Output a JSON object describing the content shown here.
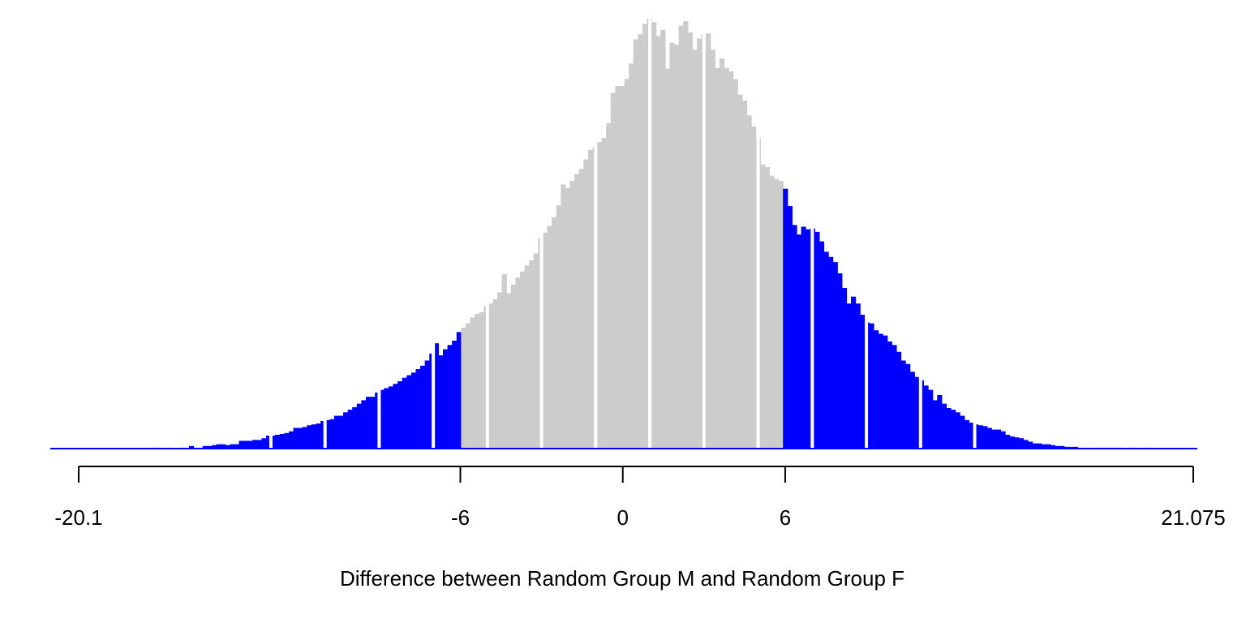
{
  "chart_data": {
    "type": "bar",
    "title": "",
    "xlabel": "Difference between Random Group M and Random Group F",
    "ylabel": "",
    "bin_width": 0.1675,
    "x_start": -21.05,
    "x_axis_range": [
      -20.1,
      21.075
    ],
    "tick_values": [
      -20.1,
      -6,
      0,
      6,
      21.075
    ],
    "tick_labels": [
      "-20.1",
      "-6",
      "0",
      "6",
      "21.075"
    ],
    "threshold_low": -6,
    "threshold_high": 6,
    "y_axis_visible": false,
    "grid": false,
    "legend": "none",
    "colors": {
      "tail": "#0000FF",
      "middle": "#CCCCCC",
      "axis": "#000000",
      "background": "#FFFFFF"
    },
    "counts": [
      0,
      0,
      0,
      0,
      0,
      0,
      0,
      0,
      0,
      0,
      0,
      0,
      0,
      0,
      0,
      0,
      0,
      0,
      0,
      0,
      0,
      0,
      1,
      1,
      0,
      1,
      0,
      0,
      1,
      1,
      3,
      1,
      1,
      3,
      3,
      4,
      5,
      5,
      4,
      5,
      5,
      9,
      9,
      9,
      10,
      10,
      12,
      15,
      15,
      16,
      17,
      18,
      20,
      24,
      24,
      25,
      27,
      28,
      29,
      32,
      33,
      34,
      38,
      38,
      42,
      45,
      48,
      52,
      56,
      60,
      60,
      65,
      68,
      70,
      72,
      75,
      78,
      82,
      85,
      88,
      92,
      96,
      102,
      110,
      122,
      108,
      115,
      120,
      125,
      135,
      140,
      145,
      152,
      156,
      158,
      165,
      168,
      173,
      181,
      202,
      180,
      190,
      198,
      205,
      212,
      218,
      226,
      244,
      250,
      258,
      268,
      282,
      306,
      302,
      310,
      318,
      324,
      335,
      346,
      349,
      355,
      360,
      377,
      412,
      420,
      420,
      428,
      446,
      474,
      480,
      492,
      498,
      494,
      478,
      485,
      440,
      470,
      468,
      490,
      495,
      482,
      462,
      475,
      480,
      481,
      462,
      441,
      452,
      441,
      437,
      428,
      410,
      403,
      386,
      373,
      360,
      329,
      326,
      316,
      312,
      310,
      301,
      281,
      259,
      248,
      257,
      254,
      255,
      251,
      240,
      228,
      222,
      216,
      203,
      186,
      168,
      176,
      168,
      155,
      146,
      145,
      137,
      133,
      131,
      124,
      120,
      112,
      102,
      98,
      89,
      83,
      79,
      73,
      68,
      56,
      62,
      52,
      47,
      45,
      42,
      38,
      33,
      30,
      28,
      27,
      26,
      24,
      22,
      22,
      20,
      16,
      14,
      13,
      12,
      10,
      8,
      6,
      6,
      5,
      5,
      4,
      3,
      3,
      2,
      2,
      2,
      1,
      1,
      1,
      1,
      1,
      1,
      1,
      1,
      1,
      1,
      0,
      1,
      1,
      0,
      1,
      1,
      0,
      0,
      0,
      0,
      0,
      0,
      0,
      0,
      0,
      0,
      0,
      0,
      0,
      0,
      0,
      0,
      0,
      0,
      0,
      0
    ]
  }
}
